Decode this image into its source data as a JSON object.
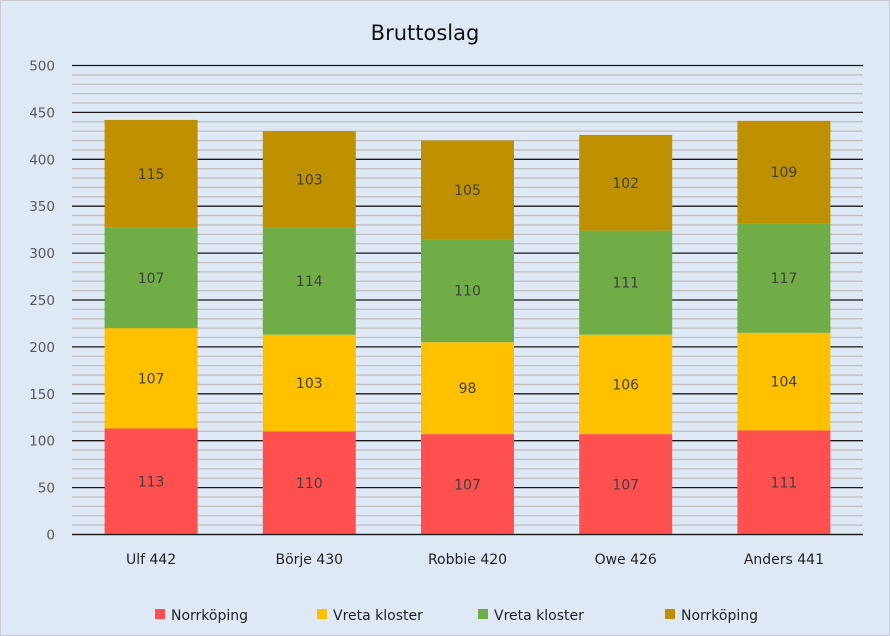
{
  "chart_data": {
    "type": "bar",
    "stacked": true,
    "title": "Bruttoslag",
    "xlabel": "",
    "ylabel": "",
    "ylim": [
      0,
      500
    ],
    "yticks": [
      "0",
      "50",
      "100",
      "150",
      "200",
      "250",
      "300",
      "350",
      "400",
      "450",
      "500"
    ],
    "grid": true,
    "legend_position": "bottom",
    "categories": [
      "Ulf 442",
      "Börje 430",
      "Robbie 420",
      "Owe 426",
      "Anders 441"
    ],
    "series": [
      {
        "name": "Norrköping",
        "color": "#ff5050",
        "values": [
          113,
          110,
          107,
          107,
          111
        ]
      },
      {
        "name": "Vreta kloster",
        "color": "#ffc000",
        "values": [
          107,
          103,
          98,
          106,
          104
        ]
      },
      {
        "name": "Vreta kloster",
        "color": "#70ad47",
        "values": [
          107,
          114,
          110,
          111,
          117
        ]
      },
      {
        "name": "Norrköping",
        "color": "#bf9000",
        "values": [
          115,
          103,
          105,
          102,
          109
        ]
      }
    ]
  }
}
